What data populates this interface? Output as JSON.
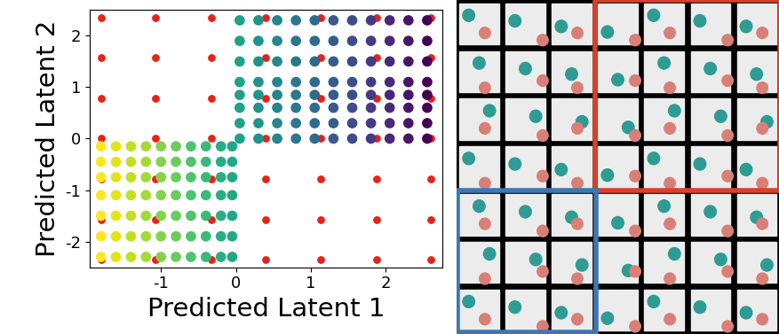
{
  "chart_data": {
    "type": "scatter",
    "x_label": "Predicted Latent 1",
    "y_label": "Predicted Latent 2",
    "xlim": [
      -1.95,
      2.75
    ],
    "xticks": [
      -1,
      0,
      1,
      2
    ],
    "ylim": [
      -2.5,
      2.5
    ],
    "yticks": [
      -2,
      -1,
      0,
      1,
      2
    ],
    "grid": false,
    "series": [
      {
        "x": [
          0.05,
          0.3,
          0.55,
          0.8,
          1.05,
          1.3,
          1.55,
          1.8,
          2.05,
          2.3,
          2.55,
          0.05,
          0.3,
          0.55,
          0.8,
          1.05,
          1.3,
          1.55,
          1.8,
          2.05,
          2.3,
          2.55,
          0.05,
          0.3,
          0.55,
          0.8,
          1.05,
          1.3,
          1.55,
          1.8,
          2.05,
          2.3,
          2.55,
          0.05,
          0.3,
          0.55,
          0.8,
          1.05,
          1.3,
          1.55,
          1.8,
          2.05,
          2.3,
          2.55,
          0.05,
          0.3,
          0.55,
          0.8,
          1.05,
          1.3,
          1.55,
          1.8,
          2.05,
          2.3,
          2.55,
          0.05,
          0.3,
          0.55,
          0.8,
          1.05,
          1.3,
          1.55,
          1.8,
          2.05,
          2.3,
          2.55,
          0.05,
          0.3,
          0.55,
          0.8,
          1.05,
          1.3,
          1.55,
          1.8,
          2.05,
          2.3,
          2.55,
          0.05,
          0.3,
          0.55,
          0.8,
          1.05,
          1.3,
          1.55,
          1.8,
          2.05,
          2.3,
          2.55
        ],
        "values": [
          0.0,
          0.0,
          0.0,
          0.0,
          0.0,
          0.0,
          0.0,
          0.0,
          0.0,
          0.0,
          0.0,
          0.3,
          0.3,
          0.3,
          0.3,
          0.3,
          0.3,
          0.3,
          0.3,
          0.3,
          0.3,
          0.3,
          0.6,
          0.6,
          0.6,
          0.6,
          0.6,
          0.6,
          0.6,
          0.6,
          0.6,
          0.6,
          0.6,
          0.85,
          0.85,
          0.85,
          0.85,
          0.85,
          0.85,
          0.85,
          0.85,
          0.85,
          0.85,
          0.85,
          1.1,
          1.1,
          1.1,
          1.1,
          1.1,
          1.1,
          1.1,
          1.1,
          1.1,
          1.1,
          1.1,
          1.5,
          1.5,
          1.5,
          1.5,
          1.5,
          1.5,
          1.5,
          1.5,
          1.5,
          1.5,
          1.5,
          1.9,
          1.9,
          1.9,
          1.9,
          1.9,
          1.9,
          1.9,
          1.9,
          1.9,
          1.9,
          1.9,
          2.3,
          2.3,
          2.3,
          2.3,
          2.3,
          2.3,
          2.3,
          2.3,
          2.3,
          2.3,
          2.3
        ]
      },
      {
        "x": [
          -1.8,
          -1.6,
          -1.4,
          -1.2,
          -1.0,
          -0.8,
          -0.6,
          -0.4,
          -0.2,
          -0.05,
          -1.8,
          -1.6,
          -1.4,
          -1.2,
          -1.0,
          -0.8,
          -0.6,
          -0.4,
          -0.2,
          -0.05,
          -1.8,
          -1.6,
          -1.4,
          -1.2,
          -1.0,
          -0.8,
          -0.6,
          -0.4,
          -0.2,
          -0.05,
          -1.8,
          -1.6,
          -1.4,
          -1.2,
          -1.0,
          -0.8,
          -0.6,
          -0.4,
          -0.2,
          -0.05,
          -1.8,
          -1.6,
          -1.4,
          -1.2,
          -1.0,
          -0.8,
          -0.6,
          -0.4,
          -0.2,
          -0.05,
          -1.8,
          -1.6,
          -1.4,
          -1.2,
          -1.0,
          -0.8,
          -0.6,
          -0.4,
          -0.2,
          -0.05,
          -1.8,
          -1.6,
          -1.4,
          -1.2,
          -1.0,
          -0.8,
          -0.6,
          -0.4,
          -0.2,
          -0.05
        ],
        "values": [
          -0.15,
          -0.15,
          -0.15,
          -0.15,
          -0.15,
          -0.15,
          -0.15,
          -0.15,
          -0.15,
          -0.15,
          -0.45,
          -0.45,
          -0.45,
          -0.45,
          -0.45,
          -0.45,
          -0.45,
          -0.45,
          -0.45,
          -0.45,
          -0.75,
          -0.75,
          -0.75,
          -0.75,
          -0.75,
          -0.75,
          -0.75,
          -0.75,
          -0.75,
          -0.75,
          -1.1,
          -1.1,
          -1.1,
          -1.1,
          -1.1,
          -1.1,
          -1.1,
          -1.1,
          -1.1,
          -1.1,
          -1.5,
          -1.5,
          -1.5,
          -1.5,
          -1.5,
          -1.5,
          -1.5,
          -1.5,
          -1.5,
          -1.5,
          -1.9,
          -1.9,
          -1.9,
          -1.9,
          -1.9,
          -1.9,
          -1.9,
          -1.9,
          -1.9,
          -1.9,
          -2.3,
          -2.3,
          -2.3,
          -2.3,
          -2.3,
          -2.3,
          -2.3,
          -2.3,
          -2.3,
          -2.3
        ]
      },
      {
        "color": "#e8211a",
        "x": [
          -1.8,
          -1.07,
          -0.33,
          0.4,
          1.13,
          1.87,
          2.6,
          -1.8,
          -1.07,
          -0.33,
          0.4,
          1.13,
          1.87,
          2.6,
          -1.8,
          -1.07,
          -0.33,
          0.4,
          1.13,
          1.87,
          2.6,
          -1.8,
          -1.07,
          -0.33,
          0.4,
          1.13,
          1.87,
          2.6,
          -1.8,
          -1.07,
          -0.33,
          0.4,
          1.13,
          1.87,
          2.6,
          -1.8,
          -1.07,
          -0.33,
          0.4,
          1.13,
          1.87,
          2.6,
          -1.8,
          -1.07,
          -0.33,
          0.4,
          1.13,
          1.87,
          2.6
        ],
        "values": [
          2.35,
          2.35,
          2.35,
          2.35,
          2.35,
          2.35,
          2.35,
          1.57,
          1.57,
          1.57,
          1.57,
          1.57,
          1.57,
          1.57,
          0.78,
          0.78,
          0.78,
          0.78,
          0.78,
          0.78,
          0.78,
          0.0,
          0.0,
          0.0,
          0.0,
          0.0,
          0.0,
          0.0,
          -0.78,
          -0.78,
          -0.78,
          -0.78,
          -0.78,
          -0.78,
          -0.78,
          -1.57,
          -1.57,
          -1.57,
          -1.57,
          -1.57,
          -1.57,
          -1.57,
          -2.35,
          -2.35,
          -2.35,
          -2.35,
          -2.35,
          -2.35,
          -2.35
        ]
      }
    ]
  }
}
